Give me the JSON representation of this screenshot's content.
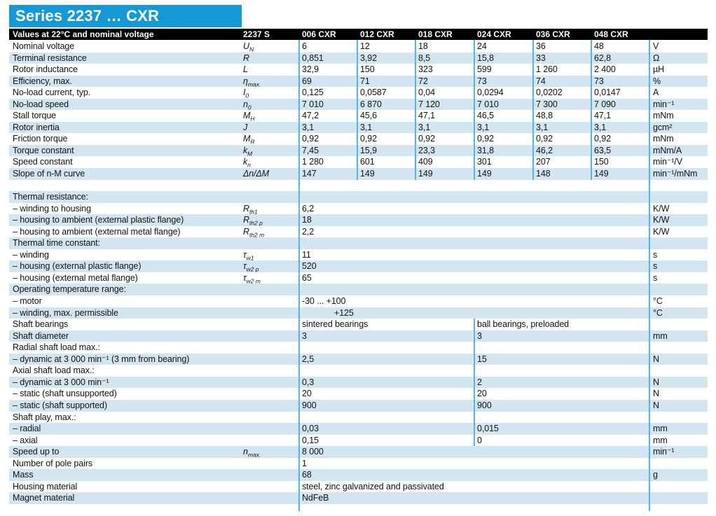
{
  "title": "Series 2237 … CXR",
  "colors": {
    "accent_blue": "#1499d6",
    "divider_blue": "#53b5e3",
    "row_alt_blue": "#d3e5f1",
    "header_bar": "#000000"
  },
  "header": {
    "caption": "Values at 22°C and nominal voltage",
    "series_label": "2237 S",
    "columns": [
      "006 CXR",
      "012 CXR",
      "018 CXR",
      "024 CXR",
      "036 CXR",
      "048 CXR"
    ]
  },
  "table": {
    "rows": [
      {
        "type": "cols",
        "label": "Nominal voltage",
        "symbol": {
          "base": "U",
          "sub": "N"
        },
        "values": [
          "6",
          "12",
          "18",
          "24",
          "36",
          "48"
        ],
        "unit": "V"
      },
      {
        "type": "cols",
        "label": "Terminal resistance",
        "symbol": {
          "base": "R",
          "sub": ""
        },
        "values": [
          "0,851",
          "3,92",
          "8,5",
          "15,8",
          "33",
          "62,8"
        ],
        "unit": "Ω"
      },
      {
        "type": "cols",
        "label": "Rotor inductance",
        "symbol": {
          "base": "L",
          "sub": ""
        },
        "values": [
          "32,9",
          "150",
          "323",
          "599",
          "1 260",
          "2 400"
        ],
        "unit": "µH"
      },
      {
        "type": "cols",
        "label": "Efficiency, max.",
        "symbol": {
          "base": "η",
          "sub": "max."
        },
        "values": [
          "69",
          "71",
          "72",
          "73",
          "74",
          "73"
        ],
        "unit": "%"
      },
      {
        "type": "cols",
        "label": "No-load current, typ.",
        "symbol": {
          "base": "I",
          "sub": "0"
        },
        "values": [
          "0,125",
          "0,0587",
          "0,04",
          "0,0294",
          "0,0202",
          "0,0147"
        ],
        "unit": "A"
      },
      {
        "type": "cols",
        "label": "No-load speed",
        "symbol": {
          "base": "n",
          "sub": "0"
        },
        "values": [
          "7 010",
          "6 870",
          "7 120",
          "7 010",
          "7 300",
          "7 090"
        ],
        "unit": "min⁻¹"
      },
      {
        "type": "cols",
        "label": "Stall torque",
        "symbol": {
          "base": "M",
          "sub": "H"
        },
        "values": [
          "47,2",
          "45,6",
          "47,1",
          "46,5",
          "48,8",
          "47,1"
        ],
        "unit": "mNm"
      },
      {
        "type": "cols",
        "label": "Rotor inertia",
        "symbol": {
          "base": "J",
          "sub": ""
        },
        "values": [
          "3,1",
          "3,1",
          "3,1",
          "3,1",
          "3,1",
          "3,1"
        ],
        "unit": "gcm²"
      },
      {
        "type": "cols",
        "label": "Friction torque",
        "symbol": {
          "base": "M",
          "sub": "R"
        },
        "values": [
          "0,92",
          "0,92",
          "0,92",
          "0,92",
          "0,92",
          "0,92"
        ],
        "unit": "mNm"
      },
      {
        "type": "cols",
        "label": "Torque constant",
        "symbol": {
          "base": "k",
          "sub": "M"
        },
        "values": [
          "7,45",
          "15,9",
          "23,3",
          "31,8",
          "46,2",
          "63,5"
        ],
        "unit": "mNm/A"
      },
      {
        "type": "cols",
        "label": "Speed constant",
        "symbol": {
          "base": "k",
          "sub": "n"
        },
        "values": [
          "1 280",
          "601",
          "409",
          "301",
          "207",
          "150"
        ],
        "unit": "min⁻¹/V"
      },
      {
        "type": "cols",
        "label": "Slope of n-M curve",
        "symbol": {
          "base": "Δn/ΔM",
          "sub": ""
        },
        "values": [
          "147",
          "149",
          "149",
          "149",
          "148",
          "149"
        ],
        "unit": "min⁻¹/mNm"
      },
      {
        "type": "gap"
      },
      {
        "type": "section",
        "label": "Thermal resistance:"
      },
      {
        "type": "span",
        "label": "– winding to housing",
        "symbol": {
          "base": "R",
          "sub": "th1"
        },
        "values": [
          "6,2"
        ],
        "unit": "K/W"
      },
      {
        "type": "span",
        "label": "– housing to ambient (external plastic flange)",
        "symbol": {
          "base": "R",
          "sub": "th2 p"
        },
        "values": [
          "18"
        ],
        "unit": "K/W"
      },
      {
        "type": "span",
        "label": "– housing to ambient (external metal flange)",
        "symbol": {
          "base": "R",
          "sub": "th2 m"
        },
        "values": [
          "2,2"
        ],
        "unit": "K/W"
      },
      {
        "type": "section",
        "label": "Thermal time constant:"
      },
      {
        "type": "span",
        "label": "– winding",
        "symbol": {
          "base": "τ",
          "sub": "w1"
        },
        "values": [
          "11"
        ],
        "unit": "s"
      },
      {
        "type": "span",
        "label": "– housing (external plastic flange)",
        "symbol": {
          "base": "τ",
          "sub": "w2 p"
        },
        "values": [
          "520"
        ],
        "unit": "s"
      },
      {
        "type": "span",
        "label": "– housing (external metal flange)",
        "symbol": {
          "base": "τ",
          "sub": "w2 m"
        },
        "values": [
          "65"
        ],
        "unit": "s"
      },
      {
        "type": "section",
        "label": "Operating temperature range:"
      },
      {
        "type": "span",
        "label": "– motor",
        "values": [
          "-30  ...  +100"
        ],
        "unit": "°C"
      },
      {
        "type": "span",
        "label": "– winding, max. permissible",
        "values": [
          "+125"
        ],
        "unit": "°C",
        "indent": true
      },
      {
        "type": "span2",
        "label": "Shaft bearings",
        "values": [
          "sintered bearings",
          "ball bearings, preloaded"
        ],
        "unit": ""
      },
      {
        "type": "span2",
        "label": "Shaft diameter",
        "values": [
          "3",
          "3"
        ],
        "unit": "mm"
      },
      {
        "type": "section",
        "label": "Radial shaft load max.:"
      },
      {
        "type": "span2",
        "label": "– dynamic at 3 000 min⁻¹ (3 mm from bearing)",
        "values": [
          "2,5",
          "15"
        ],
        "unit": "N"
      },
      {
        "type": "section",
        "label": "Axial shaft load max.:"
      },
      {
        "type": "span2",
        "label": "– dynamic at 3 000 min⁻¹",
        "values": [
          "0,3",
          "2"
        ],
        "unit": "N"
      },
      {
        "type": "span2",
        "label": "– static (shaft unsupported)",
        "values": [
          "20",
          "20"
        ],
        "unit": "N"
      },
      {
        "type": "span2",
        "label": "– static (shaft supported)",
        "values": [
          "900",
          "900"
        ],
        "unit": "N"
      },
      {
        "type": "section",
        "label": "Shaft play, max.:"
      },
      {
        "type": "span2",
        "label": "– radial",
        "values": [
          "0,03",
          "0,015"
        ],
        "unit": "mm"
      },
      {
        "type": "span2",
        "label": "– axial",
        "values": [
          "0,15",
          "0"
        ],
        "unit": "mm"
      },
      {
        "type": "span",
        "label": "Speed up to",
        "symbol": {
          "base": "n",
          "sub": "max."
        },
        "values": [
          "8 000"
        ],
        "unit": "min⁻¹"
      },
      {
        "type": "span",
        "label": "Number of pole pairs",
        "values": [
          "1"
        ],
        "unit": ""
      },
      {
        "type": "span",
        "label": "Mass",
        "values": [
          "68"
        ],
        "unit": "g"
      },
      {
        "type": "span",
        "label": "Housing material",
        "values": [
          "steel, zinc galvanized and passivated"
        ],
        "unit": ""
      },
      {
        "type": "span",
        "label": "Magnet material",
        "values": [
          "NdFeB"
        ],
        "unit": ""
      }
    ]
  }
}
